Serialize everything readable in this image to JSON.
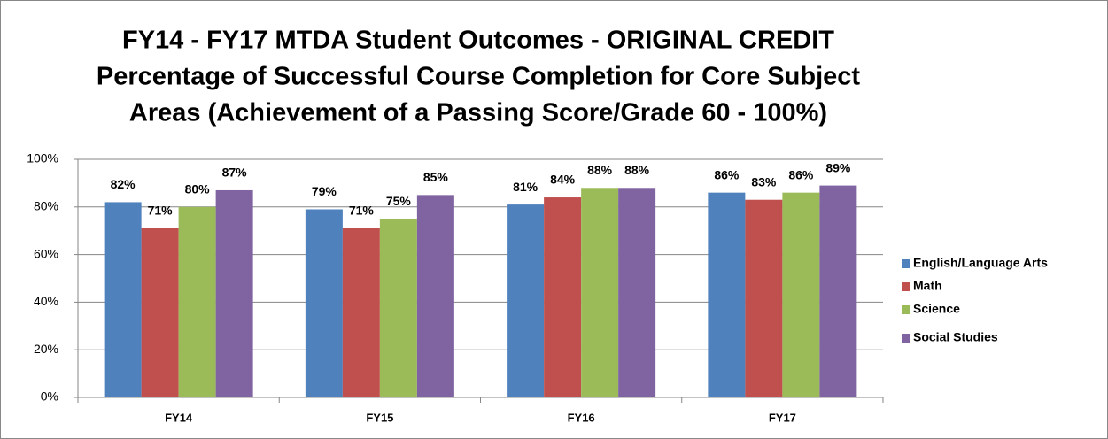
{
  "chart_data": {
    "type": "bar",
    "title": [
      "FY14 - FY17 MTDA Student Outcomes - ORIGINAL CREDIT",
      "Percentage of Successful Course Completion for Core Subject",
      "Areas (Achievement of a Passing Score/Grade 60 - 100%)"
    ],
    "categories": [
      "FY14",
      "FY15",
      "FY16",
      "FY17"
    ],
    "series": [
      {
        "name": "English/Language Arts",
        "color": "#4f81bd",
        "values": [
          82,
          79,
          81,
          86
        ],
        "value_labels": [
          "82%",
          "79%",
          "81%",
          "86%"
        ]
      },
      {
        "name": "Math",
        "color": "#c0504d",
        "values": [
          71,
          71,
          84,
          83
        ],
        "value_labels": [
          "71%",
          "71%",
          "84%",
          "83%"
        ]
      },
      {
        "name": "Science",
        "color": "#9bbb59",
        "values": [
          80,
          75,
          88,
          86
        ],
        "value_labels": [
          "80%",
          "75%",
          "88%",
          "86%"
        ]
      },
      {
        "name": "Social Studies",
        "color": "#8064a2",
        "values": [
          87,
          85,
          88,
          89
        ],
        "value_labels": [
          "87%",
          "85%",
          "88%",
          "89%"
        ]
      }
    ],
    "ylim": [
      0,
      100
    ],
    "yticks": [
      {
        "value": 0,
        "label": "0%"
      },
      {
        "value": 20,
        "label": "20%"
      },
      {
        "value": 40,
        "label": "40%"
      },
      {
        "value": 60,
        "label": "60%"
      },
      {
        "value": 80,
        "label": "80%"
      },
      {
        "value": 100,
        "label": "100%"
      }
    ],
    "grid": true,
    "legend": "right"
  }
}
